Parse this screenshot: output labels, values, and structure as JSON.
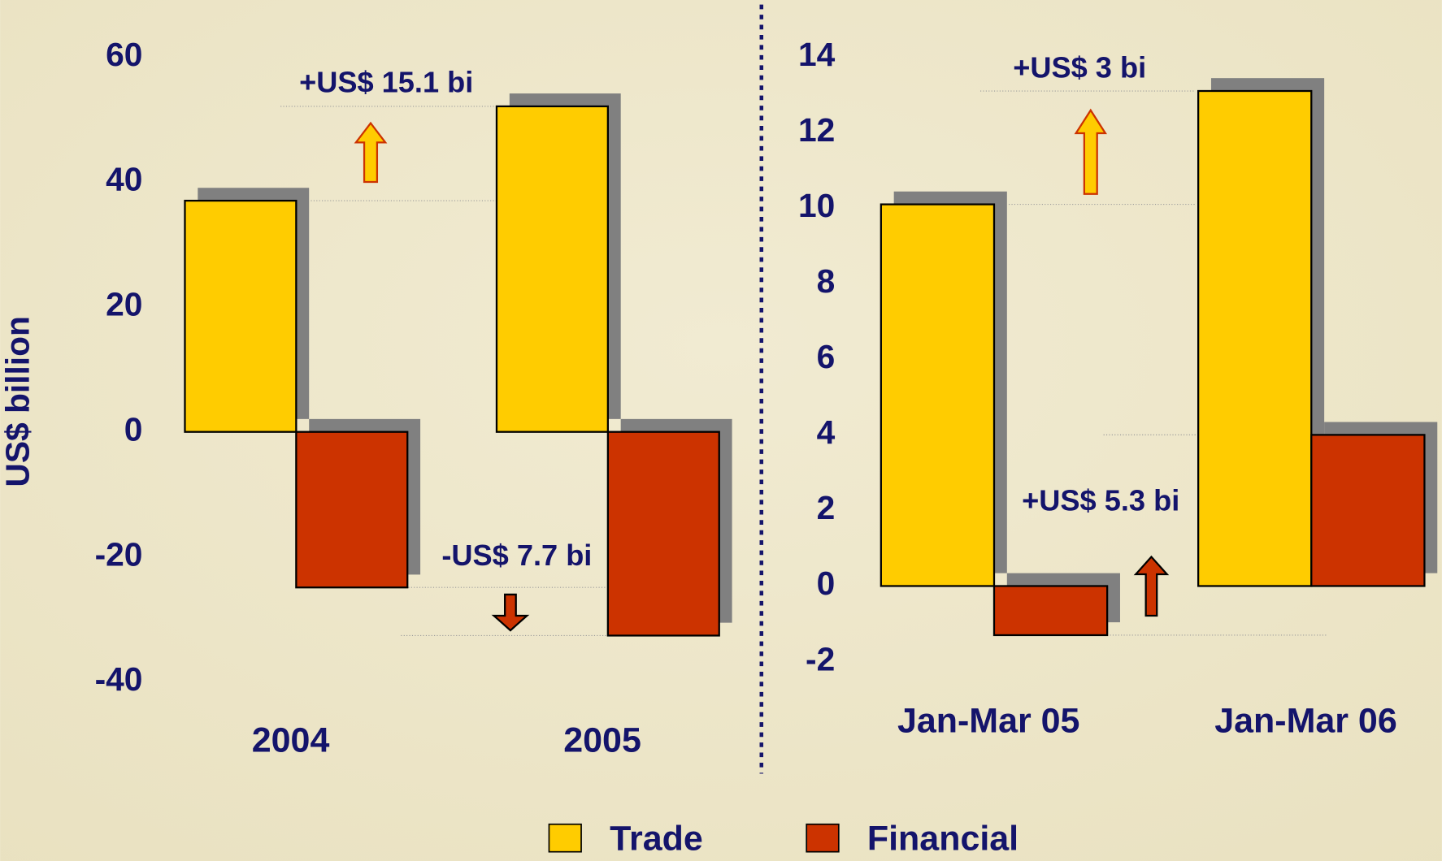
{
  "chart_data": [
    {
      "type": "bar",
      "ylabel": "US$ billion",
      "categories": [
        "2004",
        "2005"
      ],
      "series": [
        {
          "name": "Trade",
          "color": "#ffcc00",
          "values": [
            37,
            52.1
          ]
        },
        {
          "name": "Financial",
          "color": "#cc3300",
          "values": [
            -24.9,
            -32.6
          ]
        }
      ],
      "ylim": [
        -40,
        60
      ],
      "yticks": [
        -40,
        -20,
        0,
        20,
        40,
        60
      ],
      "annotations": [
        "+US$ 15.1 bi",
        "-US$ 7.7 bi"
      ]
    },
    {
      "type": "bar",
      "categories": [
        "Jan-Mar 05",
        "Jan-Mar 06"
      ],
      "series": [
        {
          "color": "#ffcc00",
          "values": [
            10.1,
            13.1
          ]
        },
        {
          "color": "#cc3300",
          "values": [
            -1.3,
            4.0
          ]
        }
      ],
      "ylim": [
        -2,
        14
      ],
      "yticks": [
        -2,
        0,
        2,
        4,
        6,
        8,
        10,
        12,
        14
      ],
      "annotations": [
        "+US$ 3 bi",
        "+US$ 5.3 bi"
      ]
    }
  ]
}
